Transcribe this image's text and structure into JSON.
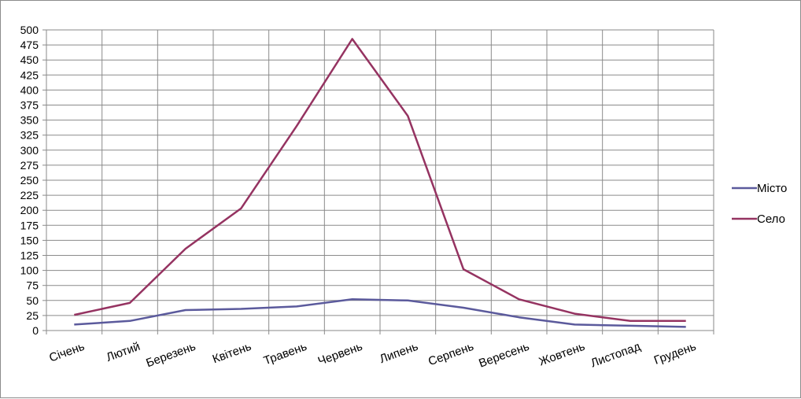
{
  "chart_data": {
    "type": "line",
    "title": "",
    "xlabel": "",
    "ylabel": "",
    "categories": [
      "Січень",
      "Лютий",
      "Березень",
      "Квітень",
      "Травень",
      "Червень",
      "Липень",
      "Серпень",
      "Вересень",
      "Жовтень",
      "Листопад",
      "Грудень"
    ],
    "ylim": [
      0,
      500
    ],
    "ytick_step": 25,
    "grid": true,
    "legend": "right",
    "series": [
      {
        "name": "Місто",
        "color": "#5b5a9c",
        "values": [
          10,
          16,
          34,
          36,
          40,
          52,
          50,
          38,
          22,
          10,
          8,
          6
        ]
      },
      {
        "name": "Село",
        "color": "#953361",
        "values": [
          26,
          46,
          136,
          203,
          340,
          485,
          357,
          102,
          52,
          28,
          16,
          16
        ]
      }
    ]
  }
}
